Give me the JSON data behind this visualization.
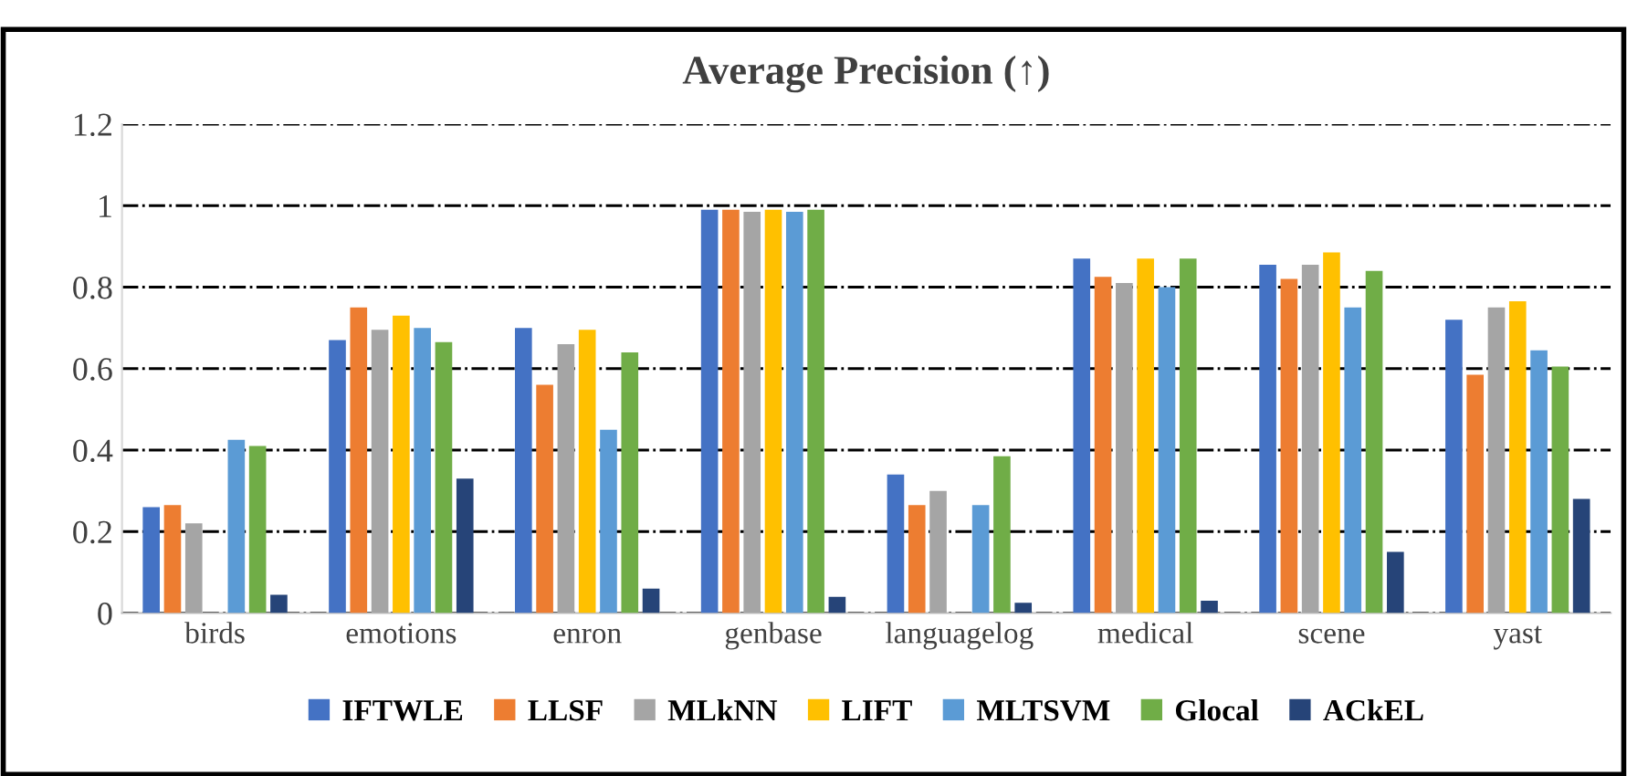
{
  "chart_data": {
    "type": "bar",
    "title": "Average Precision (↑)",
    "categories": [
      "birds",
      "emotions",
      "enron",
      "genbase",
      "languagelog",
      "medical",
      "scene",
      "yast"
    ],
    "series": [
      {
        "name": "IFTWLE",
        "color": "#4472c4",
        "values": [
          0.26,
          0.67,
          0.7,
          0.99,
          0.34,
          0.87,
          0.855,
          0.72
        ]
      },
      {
        "name": "LLSF",
        "color": "#ed7d31",
        "values": [
          0.265,
          0.75,
          0.56,
          0.99,
          0.265,
          0.825,
          0.82,
          0.585
        ]
      },
      {
        "name": "MLkNN",
        "color": "#a5a5a5",
        "values": [
          0.22,
          0.695,
          0.66,
          0.985,
          0.3,
          0.81,
          0.855,
          0.75
        ]
      },
      {
        "name": "LIFT",
        "color": "#ffc000",
        "values": [
          null,
          0.73,
          0.695,
          0.99,
          null,
          0.87,
          0.885,
          0.765
        ]
      },
      {
        "name": "MLTSVM",
        "color": "#5b9bd5",
        "values": [
          0.425,
          0.7,
          0.45,
          0.985,
          0.265,
          0.8,
          0.75,
          0.645
        ]
      },
      {
        "name": "Glocal",
        "color": "#70ad47",
        "values": [
          0.41,
          0.665,
          0.64,
          0.99,
          0.385,
          0.87,
          0.84,
          0.605
        ]
      },
      {
        "name": "ACkEL",
        "color": "#264478",
        "values": [
          0.045,
          0.33,
          0.06,
          0.04,
          0.025,
          0.03,
          0.15,
          0.28
        ]
      }
    ],
    "ylim": [
      0,
      1.2
    ],
    "yticks": [
      0,
      0.2,
      0.4,
      0.6,
      0.8,
      1,
      1.2
    ],
    "grid": "y",
    "legend": "bottom"
  }
}
